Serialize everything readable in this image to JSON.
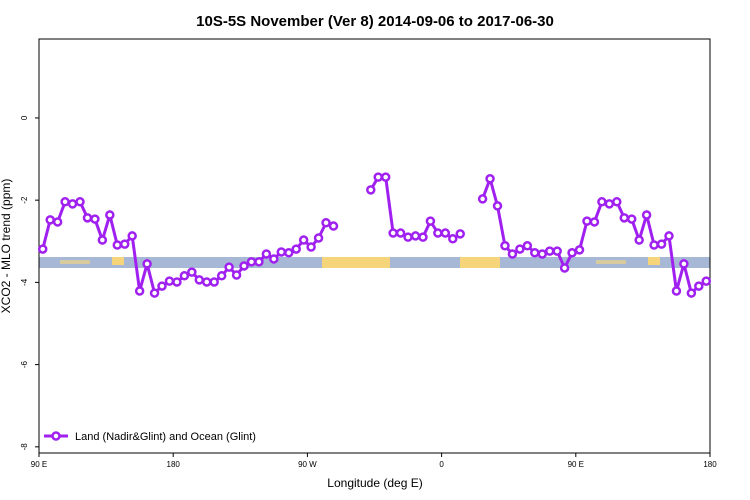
{
  "chart_data": {
    "type": "line",
    "title": "10S-5S November (Ver 8)   2014-09-06 to 2017-06-30",
    "x_label": "Longitude (deg E)",
    "y_label": "XCO2 - MLO trend (ppm)",
    "xlim": [
      90,
      540
    ],
    "ylim": [
      -8.15,
      1.92
    ],
    "xticks": [
      {
        "value": 90,
        "label": "90 E"
      },
      {
        "value": 180,
        "label": "180"
      },
      {
        "value": 270,
        "label": "90 W"
      },
      {
        "value": 360,
        "label": "0"
      },
      {
        "value": 450,
        "label": "90 E"
      },
      {
        "value": 540,
        "label": "180"
      }
    ],
    "yticks": [
      0,
      -2,
      -4,
      -6,
      -8
    ],
    "legend": "bottom-left",
    "x": [
      92.5,
      97.5,
      102.5,
      107.5,
      112.5,
      117.5,
      122.5,
      127.5,
      132.5,
      137.5,
      142.5,
      147.5,
      152.5,
      157.5,
      162.5,
      167.5,
      172.5,
      177.5,
      182.5,
      187.5,
      192.5,
      197.5,
      202.5,
      207.5,
      212.5,
      217.5,
      222.5,
      227.5,
      232.5,
      237.5,
      242.5,
      247.5,
      252.5,
      257.5,
      262.5,
      267.5,
      272.5,
      277.5,
      282.5,
      287.5,
      292.5,
      297.5,
      302.5,
      307.5,
      312.5,
      317.5,
      322.5,
      327.5,
      332.5,
      337.5,
      342.5,
      347.5,
      352.5,
      357.5,
      362.5,
      367.5,
      372.5,
      377.5,
      382.5,
      387.5,
      392.5,
      397.5,
      402.5,
      407.5,
      412.5,
      417.5,
      422.5,
      427.5,
      432.5,
      437.5,
      442.5,
      447.5,
      452.5,
      457.5,
      462.5,
      467.5,
      472.5,
      477.5,
      482.5,
      487.5,
      492.5,
      497.5,
      502.5,
      507.5,
      512.5,
      517.5,
      522.5,
      527.5,
      532.5,
      537.5
    ],
    "series": [
      {
        "name": "Land (Nadir&Glint) and Ocean (Glint)",
        "color": "#a020f0",
        "values": [
          -3.19,
          -2.48,
          -2.53,
          -2.04,
          -2.09,
          -2.04,
          -2.43,
          -2.46,
          -2.97,
          -2.36,
          -3.09,
          -3.07,
          -2.87,
          -4.21,
          -3.55,
          -4.26,
          -4.09,
          -3.97,
          -3.99,
          -3.84,
          -3.75,
          -3.94,
          -3.99,
          -3.99,
          -3.84,
          -3.63,
          -3.82,
          -3.6,
          -3.5,
          -3.5,
          -3.31,
          -3.43,
          -3.26,
          -3.28,
          -3.19,
          -2.97,
          -3.14,
          -2.92,
          -2.55,
          -2.63,
          null,
          null,
          null,
          null,
          -1.75,
          -1.44,
          -1.44,
          -2.8,
          -2.8,
          -2.9,
          -2.87,
          -2.9,
          -2.51,
          -2.8,
          -2.8,
          -2.94,
          -2.82,
          null,
          null,
          -1.97,
          -1.48,
          -2.14,
          -3.11,
          -3.31,
          -3.19,
          -3.11,
          -3.28,
          -3.31,
          -3.24,
          -3.24,
          -3.65,
          -3.28,
          -3.21,
          -2.51,
          -2.53,
          -2.04,
          -2.09,
          -2.04,
          -2.43,
          -2.46,
          -2.97,
          -2.36,
          -3.09,
          -3.07,
          -2.87,
          -4.21,
          -3.55,
          -4.26,
          -4.09,
          -3.97
        ]
      }
    ]
  }
}
